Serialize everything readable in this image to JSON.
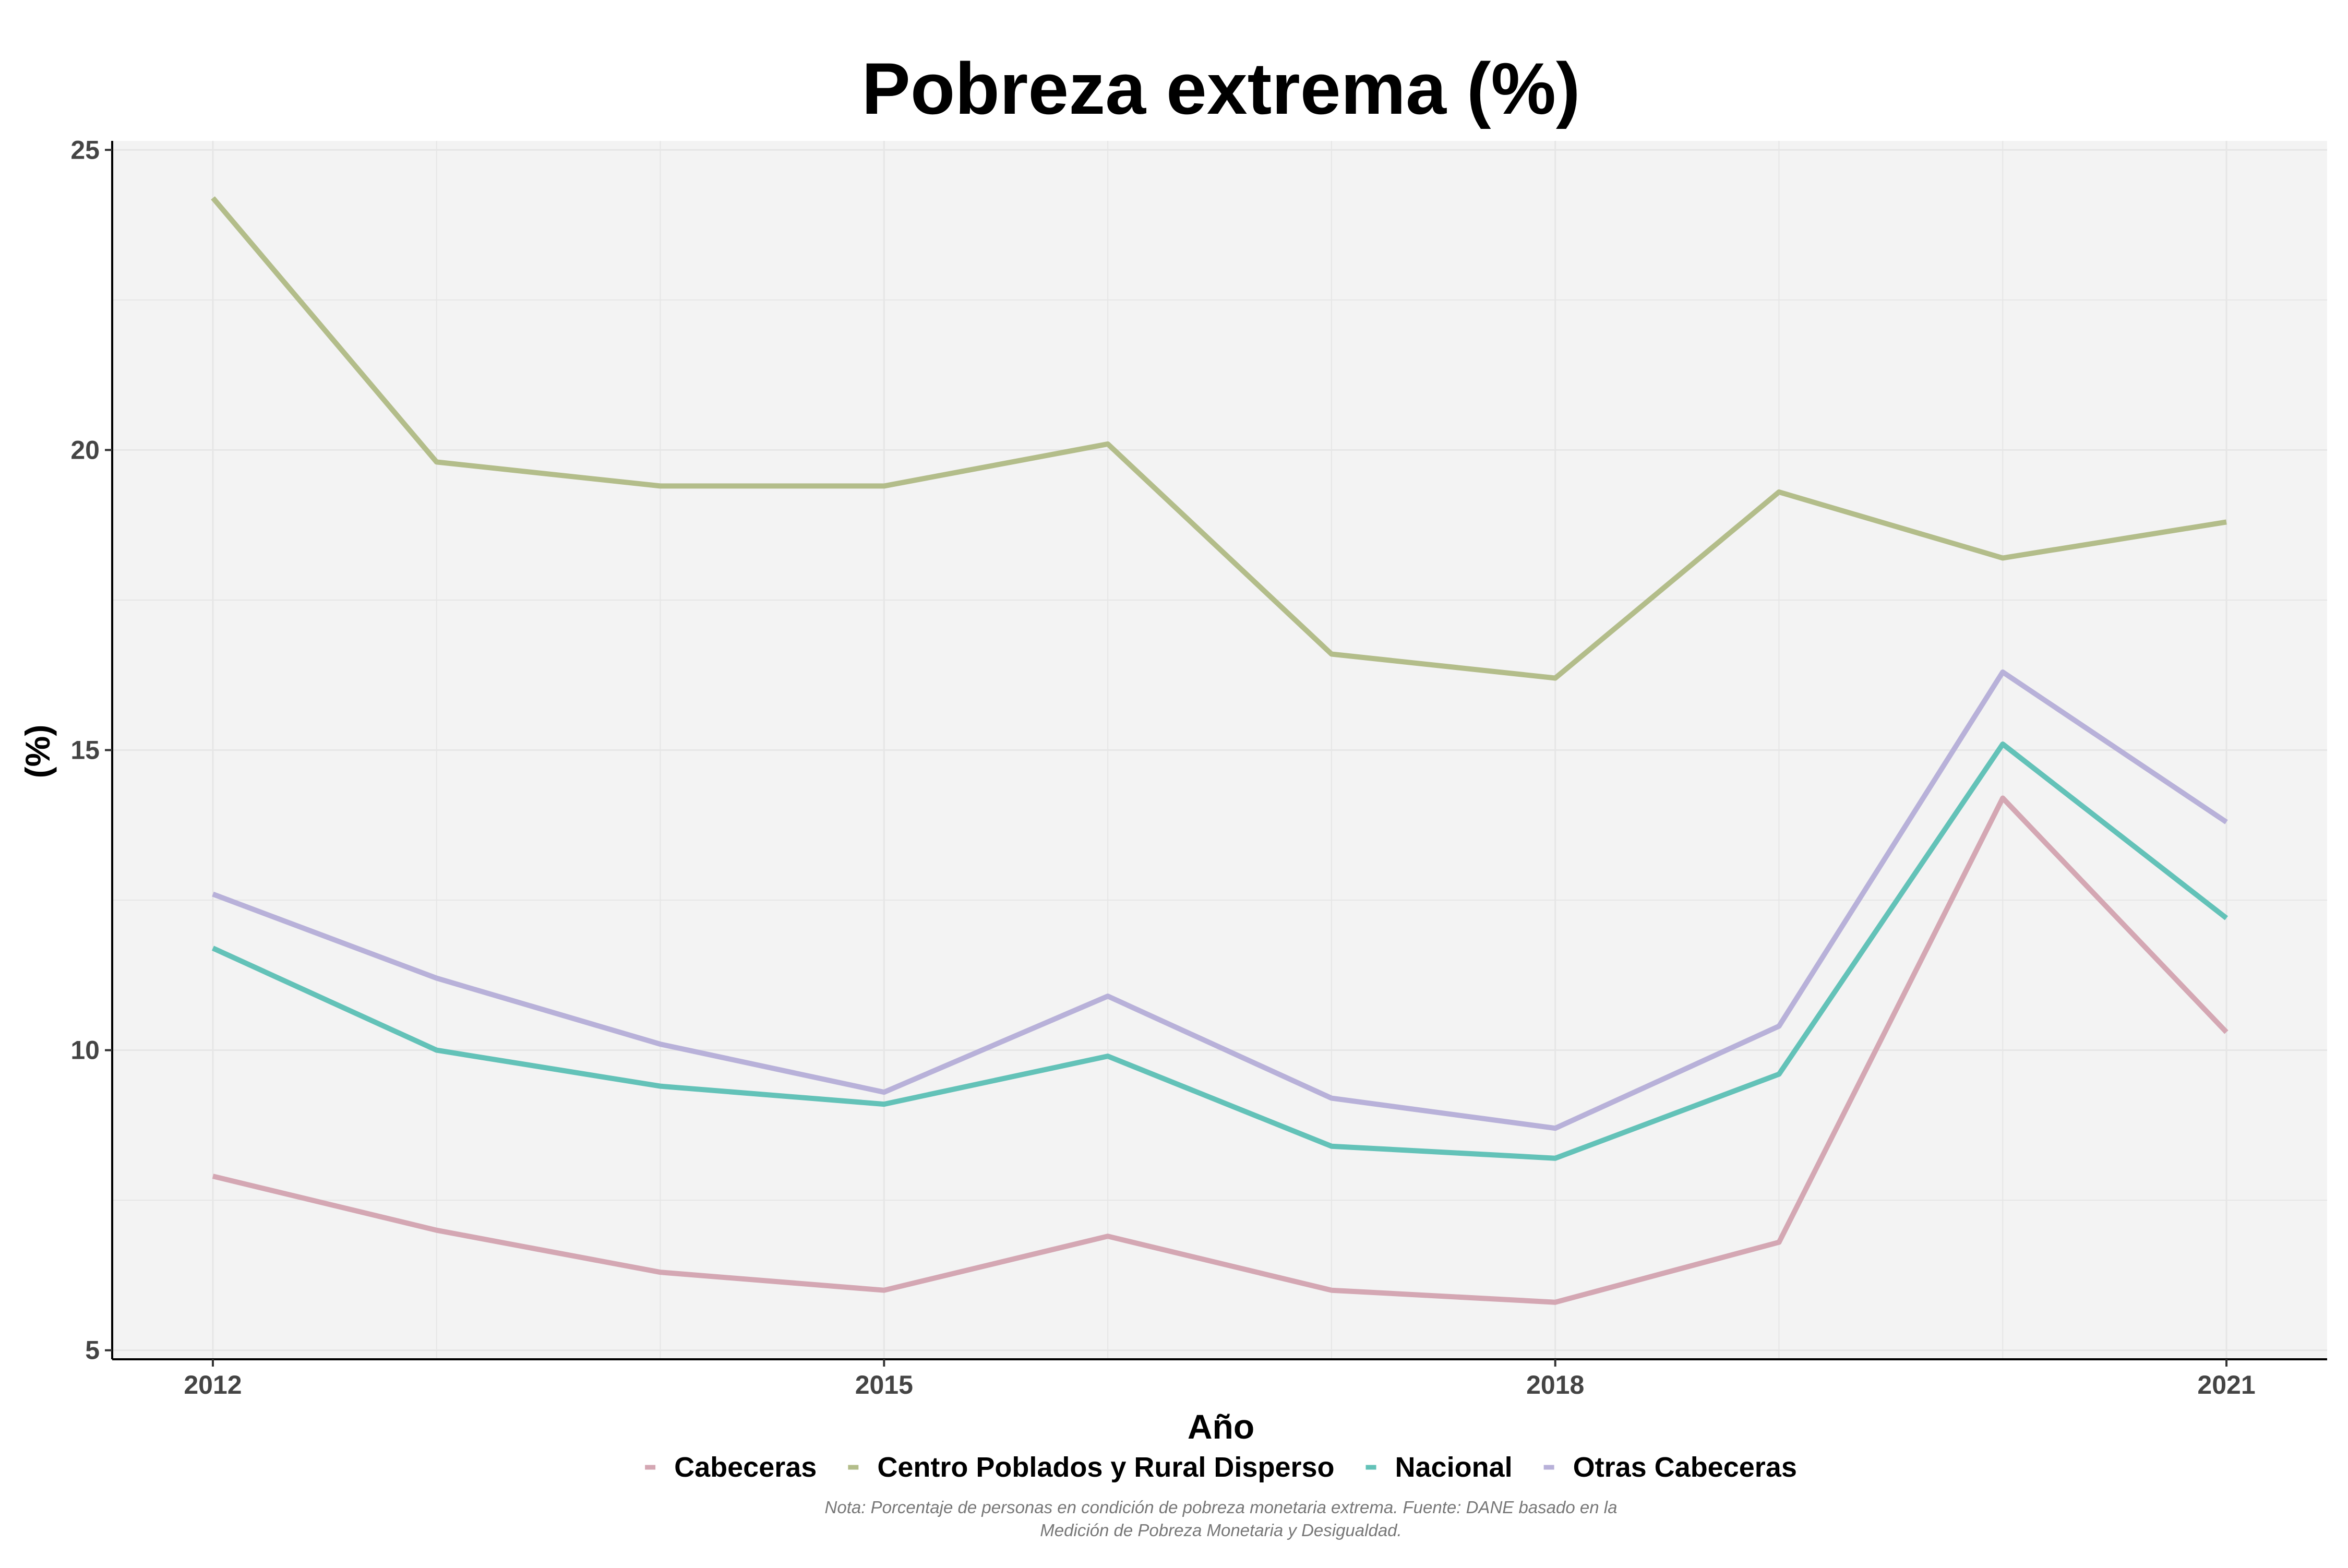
{
  "chart_data": {
    "type": "line",
    "title": "Pobreza extrema (%)",
    "xlabel": "Año",
    "ylabel": "(%)",
    "x": [
      2012,
      2013,
      2014,
      2015,
      2016,
      2017,
      2018,
      2019,
      2020,
      2021
    ],
    "xticks": [
      "2012",
      "2015",
      "2018",
      "2021"
    ],
    "yticks": [
      "5",
      "10",
      "15",
      "20",
      "25"
    ],
    "xlim": [
      2011.55,
      2021.45
    ],
    "ylim": [
      4.85,
      25.15
    ],
    "grid": true,
    "legend_position": "bottom",
    "series": [
      {
        "name": "Cabeceras",
        "color": "#d4a7b3",
        "values": [
          7.9,
          7.0,
          6.3,
          6.0,
          6.9,
          6.0,
          5.8,
          6.8,
          14.2,
          10.3
        ]
      },
      {
        "name": "Centro Poblados y Rural Disperso",
        "color": "#b3bd8a",
        "values": [
          24.2,
          19.8,
          19.4,
          19.4,
          20.1,
          16.6,
          16.2,
          19.3,
          18.2,
          18.8
        ]
      },
      {
        "name": "Nacional",
        "color": "#63c2b8",
        "values": [
          11.7,
          10.0,
          9.4,
          9.1,
          9.9,
          8.4,
          8.2,
          9.6,
          15.1,
          12.2
        ]
      },
      {
        "name": "Otras Cabeceras",
        "color": "#b8b1d9",
        "values": [
          12.6,
          11.2,
          10.1,
          9.3,
          10.9,
          9.2,
          8.7,
          10.4,
          16.3,
          13.8
        ]
      }
    ]
  },
  "note": {
    "line1": "Nota: Porcentaje de personas en condición de pobreza monetaria extrema. Fuente: DANE basado en la",
    "line2": "Medición de Pobreza Monetaria y Desigualdad."
  },
  "colors": {
    "panel_background": "#f3f3f3",
    "grid": "#e6e6e6"
  }
}
